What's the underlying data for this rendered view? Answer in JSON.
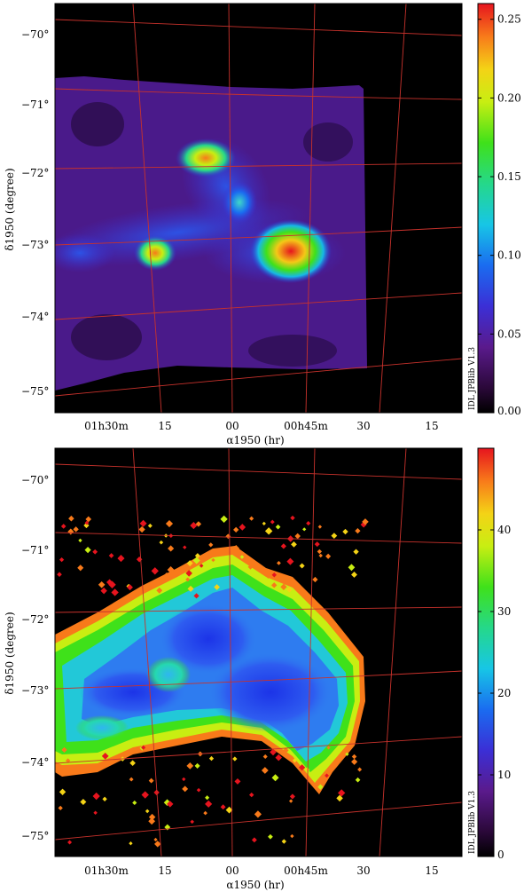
{
  "chart_data": [
    {
      "type": "heatmap",
      "panel": "top",
      "xlabel": "α1950 (hr)",
      "ylabel": "δ1950 (degree)",
      "x_tick_labels": [
        "01h30m",
        "15",
        "00",
        "00h45m",
        "30",
        "15"
      ],
      "y_tick_labels": [
        "−70°",
        "−71°",
        "−72°",
        "−73°",
        "−74°",
        "−75°"
      ],
      "colorbar": {
        "min": 0.0,
        "max": 0.26,
        "tick_values": [
          0.0,
          0.05,
          0.1,
          0.15,
          0.2,
          0.25
        ],
        "tick_labels": [
          "0.00",
          "0.05",
          "0.10",
          "0.15",
          "0.20",
          "0.25"
        ],
        "colormap": "rainbow (black-purple-blue-cyan-green-yellow-red)"
      },
      "credit": "IDL JPBlib V1.3",
      "grid": true,
      "grid_color": "#c8322c",
      "features": [
        {
          "ra_hr": 0.77,
          "dec_deg": -73.1,
          "value": 0.25
        },
        {
          "ra_hr": 1.08,
          "dec_deg": -71.8,
          "value": 0.2
        },
        {
          "ra_hr": 1.2,
          "dec_deg": -73.1,
          "value": 0.18
        },
        {
          "ra_hr": 0.95,
          "dec_deg": -72.4,
          "value": 0.12
        }
      ]
    },
    {
      "type": "heatmap",
      "panel": "bottom",
      "xlabel": "α1950 (hr)",
      "ylabel": "δ1950 (degree)",
      "x_tick_labels": [
        "01h30m",
        "15",
        "00",
        "00h45m",
        "30",
        "15"
      ],
      "y_tick_labels": [
        "−70°",
        "−71°",
        "−72°",
        "−73°",
        "−74°",
        "−75°"
      ],
      "colorbar": {
        "min": 0,
        "max": 50,
        "tick_values": [
          0,
          10,
          20,
          30,
          40
        ],
        "tick_labels": [
          "0",
          "10",
          "20",
          "30",
          "40"
        ],
        "colormap": "rainbow (black-purple-blue-cyan-green-yellow-red)"
      },
      "credit": "IDL JPBlib V1.3",
      "grid": true,
      "grid_color": "#c8322c",
      "features": [
        {
          "ra_hr": 0.8,
          "dec_deg": -73.0,
          "value": 8
        },
        {
          "ra_hr": 1.05,
          "dec_deg": -72.2,
          "value": 10
        },
        {
          "ra_hr": 0.62,
          "dec_deg": -73.5,
          "value": 25
        },
        {
          "ra_hr": 1.45,
          "dec_deg": -74.0,
          "value": 30
        }
      ]
    }
  ]
}
